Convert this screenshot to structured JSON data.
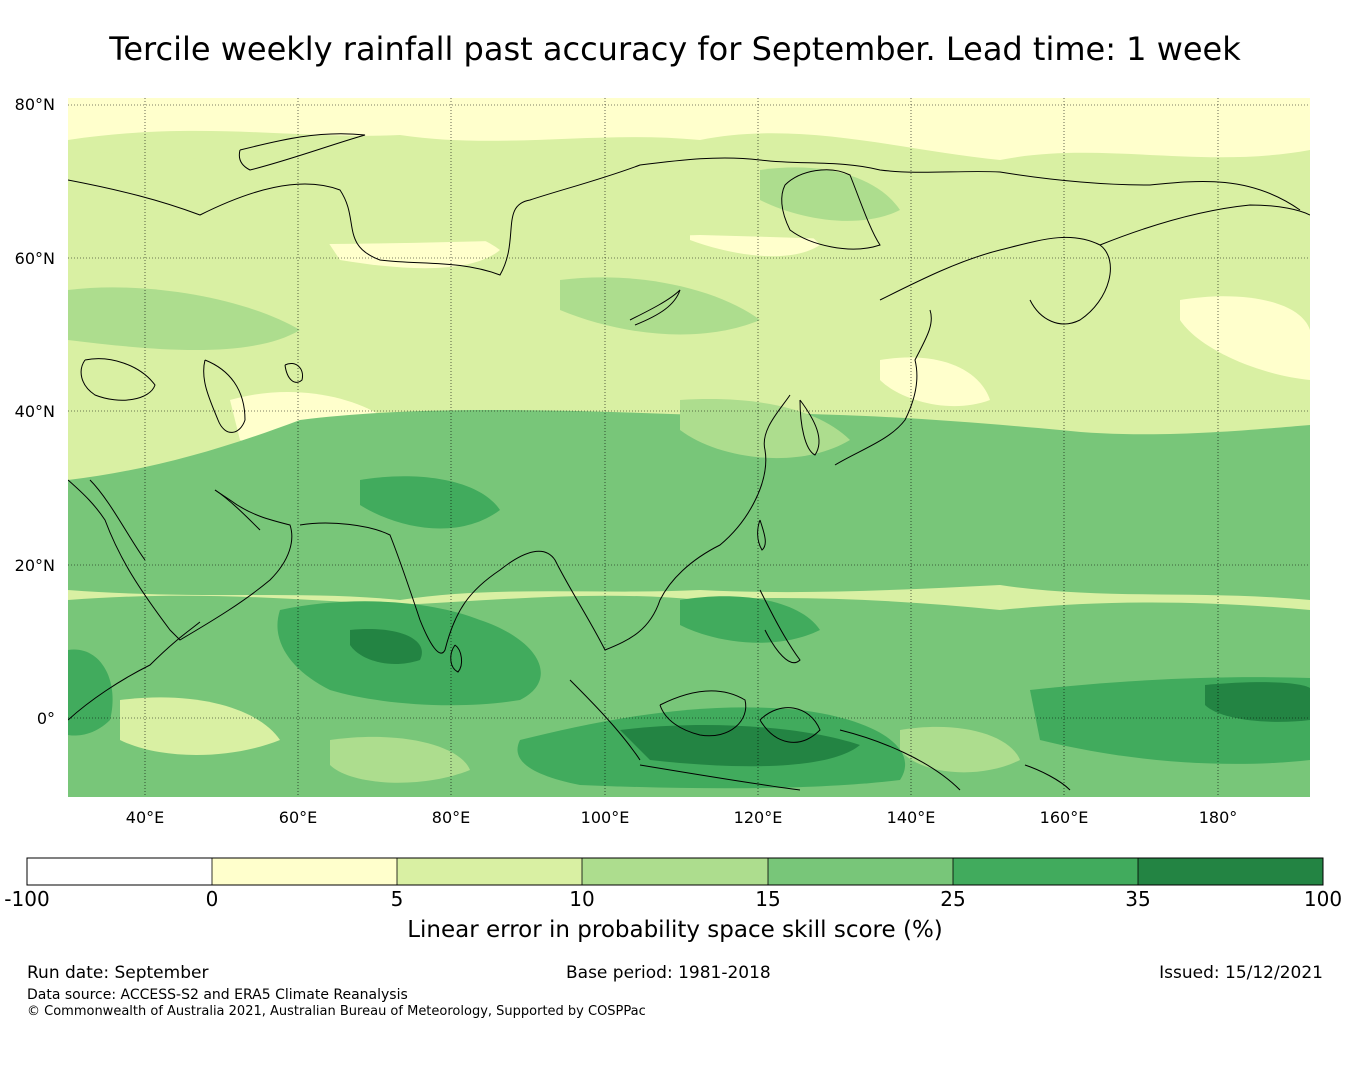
{
  "title": "Tercile weekly rainfall past accuracy for September. Lead time: 1 week",
  "map": {
    "region": "Asia and Western Pacific",
    "lon_ticks": [
      "40°E",
      "60°E",
      "80°E",
      "100°E",
      "120°E",
      "140°E",
      "160°E",
      "180°"
    ],
    "lat_ticks": [
      "80°N",
      "60°N",
      "40°N",
      "20°N",
      "0°"
    ],
    "lon_range": [
      30,
      192
    ],
    "lat_range": [
      -10,
      81
    ]
  },
  "colorbar": {
    "boundaries": [
      "-100",
      "0",
      "5",
      "10",
      "15",
      "25",
      "35",
      "100"
    ],
    "colors": [
      "#ffffff",
      "#ffffcc",
      "#d9f0a3",
      "#addd8e",
      "#78c679",
      "#41ab5d",
      "#238443"
    ],
    "label": "Linear error in probability space skill score (%)"
  },
  "footer": {
    "run_date": "Run date: September",
    "base_period": "Base period: 1981-2018",
    "issued": "Issued: 15/12/2021",
    "data_source": "Data source: ACCESS-S2 and ERA5 Climate Reanalysis",
    "copyright": "© Commonwealth of Australia 2021, Australian Bureau of Meteorology, Supported by COSPPac"
  }
}
